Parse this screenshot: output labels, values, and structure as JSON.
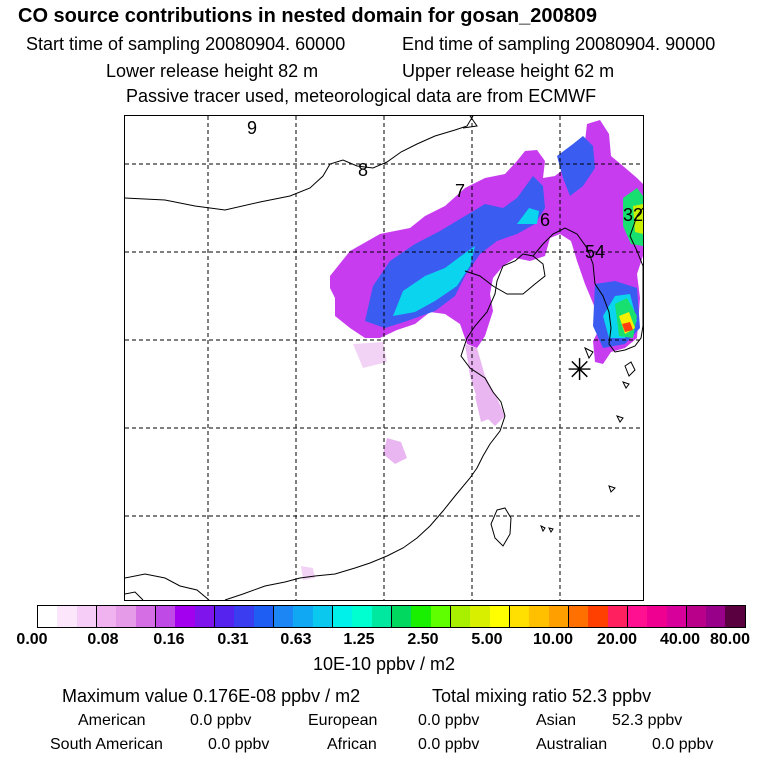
{
  "header": {
    "title": "CO  source contributions in nested domain for gosan_200809",
    "start_time": "Start time of sampling 20080904. 60000",
    "end_time": "End time of sampling 20080904. 90000",
    "lower_release": "Lower release height   82 m",
    "upper_release": "Upper release height   62 m",
    "tracer_note": "Passive tracer used, meteorological data are from ECMWF"
  },
  "map": {
    "labels": [
      "9",
      "8",
      "7",
      "6",
      "54",
      "32"
    ],
    "receptor_symbol": "✳"
  },
  "colorbar": {
    "tick_labels": [
      "0.00",
      "0.08",
      "0.16",
      "0.31",
      "0.63",
      "1.25",
      "2.50",
      "5.00",
      "10.00",
      "20.00",
      "40.00",
      "80.00"
    ],
    "unit": "10E-10 ppbv / m2",
    "colors": [
      "#ffffff",
      "#fbe6fb",
      "#f6cdf6",
      "#f0b3f0",
      "#e69be9",
      "#d56ee4",
      "#c04ae6",
      "#a300f0",
      "#7f14ec",
      "#5522ee",
      "#3a3ef0",
      "#1e5ef2",
      "#1b86f4",
      "#10a8f2",
      "#0ac8ee",
      "#00f0ea",
      "#00ffd0",
      "#00e8a0",
      "#00d860",
      "#18f000",
      "#60ff00",
      "#a8f000",
      "#d8f000",
      "#ffff00",
      "#ffe000",
      "#ffc000",
      "#ffa000",
      "#ff7000",
      "#ff4000",
      "#ff2060",
      "#ff1090",
      "#f00090",
      "#d8009a",
      "#b8008a",
      "#98008a",
      "#5a0040"
    ]
  },
  "stats": {
    "max_value": "Maximum value  0.176E-08 ppbv / m2",
    "total_mixing": "Total mixing ratio        52.3 ppbv",
    "american_label": "American",
    "american_value": "0.0 ppbv",
    "european_label": "European",
    "european_value": "0.0 ppbv",
    "asian_label": "Asian",
    "asian_value": "52.3 ppbv",
    "south_american_label": "South American",
    "south_american_value": "0.0 ppbv",
    "african_label": "African",
    "african_value": "0.0 ppbv",
    "australian_label": "Australian",
    "australian_value": "0.0 ppbv"
  }
}
